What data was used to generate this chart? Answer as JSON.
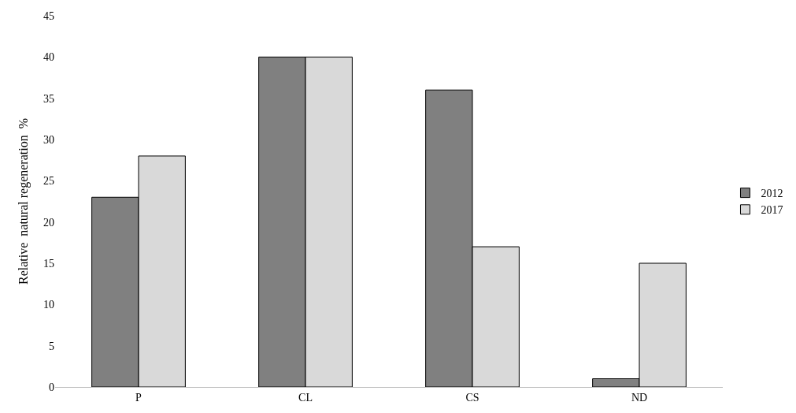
{
  "chart_data": {
    "type": "bar",
    "ylabel": "Relative  natural regeneration  %",
    "categories": [
      "P",
      "CL",
      "CS",
      "ND"
    ],
    "series": [
      {
        "name": "2012",
        "color": "#808080",
        "values": [
          23,
          40,
          36,
          1
        ]
      },
      {
        "name": "2017",
        "color": "#d9d9d9",
        "values": [
          28,
          40,
          17,
          15
        ]
      }
    ],
    "ylim": [
      0,
      45
    ],
    "yticks": [
      0,
      5,
      10,
      15,
      20,
      25,
      30,
      35,
      40,
      45
    ],
    "legend": "right"
  }
}
